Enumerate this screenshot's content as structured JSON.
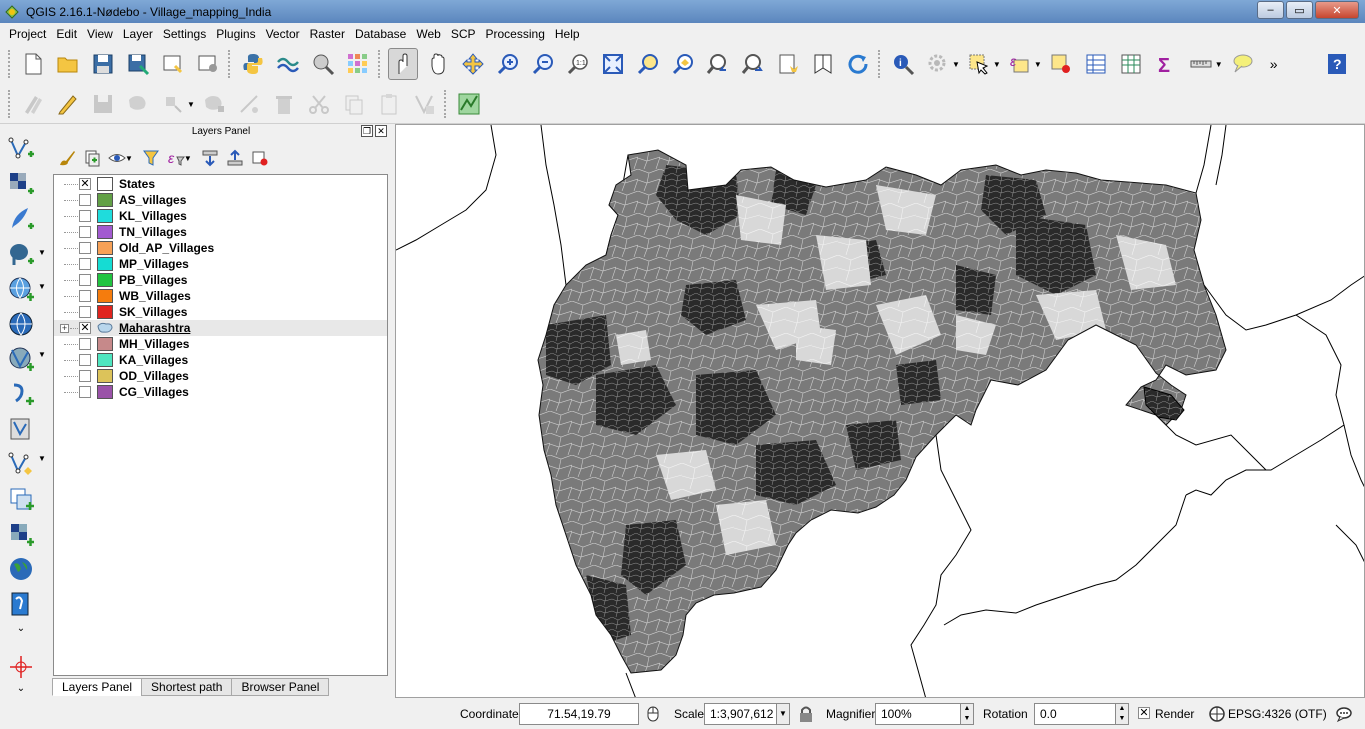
{
  "window": {
    "title": "QGIS 2.16.1-Nødebo - Village_mapping_India",
    "minimize": "–",
    "maximize": "▭",
    "close": "✕"
  },
  "menu": [
    "Project",
    "Edit",
    "View",
    "Layer",
    "Settings",
    "Plugins",
    "Vector",
    "Raster",
    "Database",
    "Web",
    "SCP",
    "Processing",
    "Help"
  ],
  "toolbar": {
    "more": "»"
  },
  "layers_panel": {
    "title": "Layers Panel",
    "float_btn": "❐",
    "close_btn": "✕",
    "layers": [
      {
        "name": "States",
        "checked": true,
        "color": "#ffffff",
        "expandable": false
      },
      {
        "name": "AS_villages",
        "checked": false,
        "color": "#62a046",
        "expandable": false
      },
      {
        "name": "KL_Villages",
        "checked": false,
        "color": "#1fdcdc",
        "expandable": false
      },
      {
        "name": "TN_Villages",
        "checked": false,
        "color": "#a25ad0",
        "expandable": false
      },
      {
        "name": "Old_AP_Villages",
        "checked": false,
        "color": "#f7a157",
        "expandable": false
      },
      {
        "name": "MP_Villages",
        "checked": false,
        "color": "#15dcd3",
        "expandable": false
      },
      {
        "name": "PB_Villages",
        "checked": false,
        "color": "#20c440",
        "expandable": false
      },
      {
        "name": "WB_Villages",
        "checked": false,
        "color": "#f57c0d",
        "expandable": false
      },
      {
        "name": "SK_Villages",
        "checked": false,
        "color": "#e0241e",
        "expandable": false
      },
      {
        "name": "Maharashtra",
        "checked": true,
        "color": "#b8d6ec",
        "expandable": true
      },
      {
        "name": "MH_Villages",
        "checked": false,
        "color": "#c6898a",
        "expandable": false
      },
      {
        "name": "KA_Villages",
        "checked": false,
        "color": "#4ee6c0",
        "expandable": false
      },
      {
        "name": "OD_Villages",
        "checked": false,
        "color": "#dcc35a",
        "expandable": false
      },
      {
        "name": "CG_Villages",
        "checked": false,
        "color": "#9a52a8",
        "expandable": false
      }
    ],
    "tabs": [
      "Layers Panel",
      "Shortest path",
      "Browser Panel"
    ]
  },
  "statusbar": {
    "coordinate_label": "Coordinate",
    "coordinate_value": "71.54,19.79",
    "scale_label": "Scale",
    "scale_value": "1:3,907,612",
    "magnifier_label": "Magnifier",
    "magnifier_value": "100%",
    "rotation_label": "Rotation",
    "rotation_value": "0.0",
    "render_label": "Render",
    "render_checked": "✕",
    "crs": "EPSG:4326 (OTF)"
  }
}
